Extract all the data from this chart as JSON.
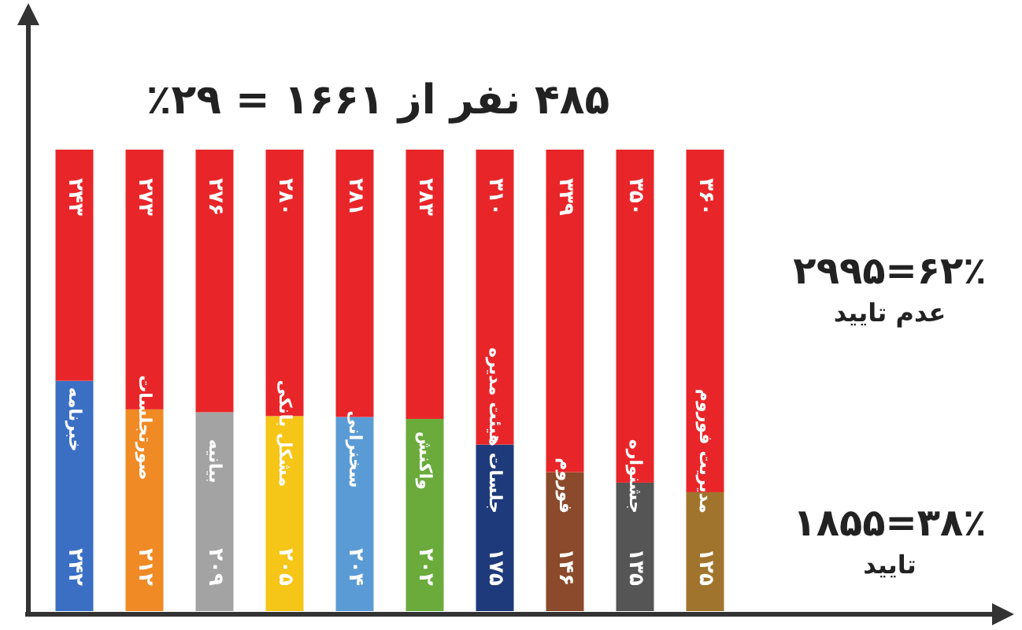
{
  "chart_data": {
    "type": "bar",
    "stacked": true,
    "title": "۴۸۵ نفر از ۱۶۶۱ = ۲۹٪",
    "categories": [
      "خبرنامه",
      "صورتجلسات",
      "بیانیه",
      "مشکل بانکی",
      "سخنرانی",
      "واکنش",
      "جلسات هیئت مدیره",
      "فوروم",
      "جشنواره",
      "مدیریت فوروم"
    ],
    "series": [
      {
        "colors": [
          "#3a6fc4",
          "#f08a24",
          "#a3a3a3",
          "#f5c518",
          "#5b9bd5",
          "#6aab3c",
          "#1f3a7a",
          "#8b4a2b",
          "#555555",
          "#a0742c"
        ],
        "values": [
          242,
          212,
          209,
          205,
          204,
          202,
          175,
          146,
          135,
          125
        ],
        "value_labels": [
          "۲۴۲",
          "۲۱۲",
          "۲۰۹",
          "۲۰۵",
          "۲۰۴",
          "۲۰۲",
          "۱۷۵",
          "۱۴۶",
          "۱۳۵",
          "۱۲۵"
        ]
      },
      {
        "color": "#e8262a",
        "values": [
          243,
          273,
          276,
          280,
          281,
          283,
          310,
          339,
          350,
          360
        ],
        "value_labels": [
          "۲۴۳",
          "۲۷۳",
          "۲۷۶",
          "۲۸۰",
          "۲۸۱",
          "۲۸۳",
          "۳۱۰",
          "۳۳۹",
          "۳۵۰",
          "۳۶۰"
        ]
      }
    ],
    "annotations": [
      "۶۲٪=۲۹۹۵\nعدم تایید",
      "۳۸٪=۱۸۵۵\nتایید"
    ],
    "tick_labels": "x",
    "legend": false,
    "grid": false
  }
}
